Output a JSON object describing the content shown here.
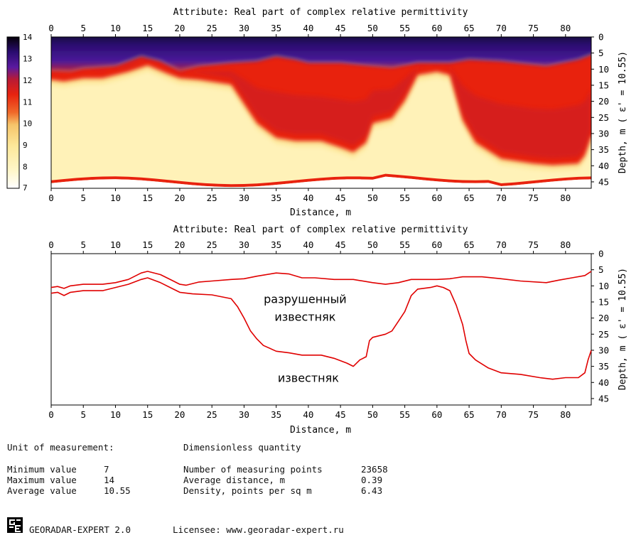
{
  "chart_data": [
    {
      "type": "heatmap",
      "title": "Attribute:  Real part of complex relative permittivity",
      "xlabel": "Distance, m",
      "ylabel": "Depth, m  ( ε' = 10.55)",
      "xlim": [
        0,
        84
      ],
      "ylim": [
        0,
        47
      ],
      "x_ticks": [
        "0",
        "5",
        "10",
        "15",
        "20",
        "25",
        "30",
        "35",
        "40",
        "45",
        "50",
        "55",
        "60",
        "65",
        "70",
        "75",
        "80"
      ],
      "y_ticks": [
        "0",
        "5",
        "10",
        "15",
        "20",
        "25",
        "30",
        "35",
        "40",
        "45"
      ],
      "colorbar": {
        "ticks": [
          "14",
          "13",
          "12",
          "11",
          "10",
          "9",
          "8",
          "7"
        ],
        "min": 7,
        "max": 14,
        "colors": [
          "#ffffff",
          "#fff2b8",
          "#fde89a",
          "#f6c46a",
          "#f06a2a",
          "#e8230f",
          "#b81a35",
          "#4a1598",
          "#2a0c70",
          "#050008"
        ]
      },
      "bands": {
        "upper_boundary_depth": [
          [
            0,
            10.5
          ],
          [
            3,
            10.8
          ],
          [
            5,
            9.8
          ],
          [
            10,
            9
          ],
          [
            14,
            6
          ],
          [
            17,
            7.5
          ],
          [
            20,
            10.5
          ],
          [
            23,
            9
          ],
          [
            28,
            8
          ],
          [
            32,
            7.5
          ],
          [
            35,
            6
          ],
          [
            38,
            7
          ],
          [
            40,
            8
          ],
          [
            45,
            8
          ],
          [
            50,
            9
          ],
          [
            53,
            9.5
          ],
          [
            57,
            8
          ],
          [
            62,
            8
          ],
          [
            65,
            7
          ],
          [
            70,
            7.5
          ],
          [
            77,
            9
          ],
          [
            82,
            7
          ],
          [
            84,
            5.5
          ]
        ],
        "lower_boundary_depth": [
          [
            0,
            12.5
          ],
          [
            2,
            13
          ],
          [
            5,
            12
          ],
          [
            8,
            12
          ],
          [
            12,
            10
          ],
          [
            15,
            8
          ],
          [
            18,
            10.5
          ],
          [
            20,
            12
          ],
          [
            23,
            12.5
          ],
          [
            28,
            14
          ],
          [
            30,
            20
          ],
          [
            32,
            26
          ],
          [
            35,
            30.5
          ],
          [
            38,
            31.5
          ],
          [
            42,
            31.5
          ],
          [
            45,
            33.5
          ],
          [
            47,
            35
          ],
          [
            49,
            32
          ],
          [
            50,
            26
          ],
          [
            53,
            24.5
          ],
          [
            55,
            19
          ],
          [
            57,
            11
          ],
          [
            60,
            10
          ],
          [
            62,
            11
          ],
          [
            64,
            25
          ],
          [
            66,
            32
          ],
          [
            70,
            37
          ],
          [
            75,
            38.5
          ],
          [
            78,
            39
          ],
          [
            82,
            38.5
          ],
          [
            83,
            36
          ],
          [
            84,
            30
          ]
        ],
        "bottom_edge_depth": 47
      },
      "zone_values": {
        "top": 13.5,
        "between_boundaries": 11.3,
        "below_lower_boundary": 9.3
      }
    },
    {
      "type": "line",
      "title": "Attribute:  Real part of complex relative permittivity",
      "xlabel": "Distance, m",
      "ylabel": "Depth, m  ( ε' = 10.55)",
      "xlim": [
        0,
        84
      ],
      "ylim": [
        0,
        47
      ],
      "x_ticks": [
        "0",
        "5",
        "10",
        "15",
        "20",
        "25",
        "30",
        "35",
        "40",
        "45",
        "50",
        "55",
        "60",
        "65",
        "70",
        "75",
        "80"
      ],
      "y_ticks": [
        "0",
        "5",
        "10",
        "15",
        "20",
        "25",
        "30",
        "35",
        "40",
        "45"
      ],
      "series": [
        {
          "color": "#e00000",
          "points": [
            [
              0,
              10.5
            ],
            [
              1,
              10.2
            ],
            [
              2,
              10.8
            ],
            [
              3,
              10
            ],
            [
              5,
              9.5
            ],
            [
              8,
              9.5
            ],
            [
              10,
              9
            ],
            [
              12,
              8
            ],
            [
              14,
              6
            ],
            [
              15,
              5.5
            ],
            [
              17,
              6.5
            ],
            [
              19,
              8.5
            ],
            [
              20,
              9.5
            ],
            [
              21,
              9.8
            ],
            [
              23,
              8.8
            ],
            [
              25,
              8.5
            ],
            [
              28,
              8
            ],
            [
              30,
              7.8
            ],
            [
              32,
              7
            ],
            [
              35,
              6
            ],
            [
              37,
              6.3
            ],
            [
              39,
              7.5
            ],
            [
              41,
              7.5
            ],
            [
              44,
              8
            ],
            [
              47,
              8
            ],
            [
              50,
              9
            ],
            [
              52,
              9.5
            ],
            [
              54,
              9
            ],
            [
              56,
              8
            ],
            [
              60,
              8
            ],
            [
              62,
              7.8
            ],
            [
              64,
              7.2
            ],
            [
              67,
              7.2
            ],
            [
              70,
              7.8
            ],
            [
              73,
              8.5
            ],
            [
              77,
              9
            ],
            [
              79,
              8.2
            ],
            [
              81,
              7.5
            ],
            [
              83,
              6.8
            ],
            [
              84,
              5.5
            ]
          ]
        },
        {
          "color": "#e00000",
          "points": [
            [
              0,
              12.3
            ],
            [
              1,
              12
            ],
            [
              2,
              13
            ],
            [
              3,
              12
            ],
            [
              5,
              11.5
            ],
            [
              8,
              11.5
            ],
            [
              10,
              10.5
            ],
            [
              12,
              9.5
            ],
            [
              14,
              8
            ],
            [
              15,
              7.5
            ],
            [
              17,
              9
            ],
            [
              19,
              11
            ],
            [
              20,
              12
            ],
            [
              22,
              12.5
            ],
            [
              25,
              12.8
            ],
            [
              28,
              14
            ],
            [
              29,
              16.5
            ],
            [
              30,
              20
            ],
            [
              31,
              24
            ],
            [
              32,
              26.5
            ],
            [
              33,
              28.5
            ],
            [
              35,
              30.3
            ],
            [
              37,
              30.8
            ],
            [
              39,
              31.5
            ],
            [
              42,
              31.5
            ],
            [
              44,
              32.5
            ],
            [
              46,
              34
            ],
            [
              47,
              35
            ],
            [
              48,
              33
            ],
            [
              49,
              32
            ],
            [
              49.5,
              27
            ],
            [
              50,
              26
            ],
            [
              52,
              25
            ],
            [
              53,
              24
            ],
            [
              54,
              21
            ],
            [
              55,
              18
            ],
            [
              56,
              13
            ],
            [
              57,
              11
            ],
            [
              59,
              10.5
            ],
            [
              60,
              10
            ],
            [
              61,
              10.5
            ],
            [
              62,
              11.5
            ],
            [
              63,
              16
            ],
            [
              64,
              22
            ],
            [
              64.5,
              27
            ],
            [
              65,
              31
            ],
            [
              66,
              33
            ],
            [
              68,
              35.5
            ],
            [
              70,
              37
            ],
            [
              73,
              37.5
            ],
            [
              76,
              38.5
            ],
            [
              78,
              39
            ],
            [
              80,
              38.5
            ],
            [
              82,
              38.5
            ],
            [
              83,
              37
            ],
            [
              83.5,
              33
            ],
            [
              84,
              30
            ]
          ]
        }
      ],
      "annotations": [
        {
          "text": "разрушенный",
          "x": 39.5,
          "y": 14
        },
        {
          "text": "известняк",
          "x": 39.5,
          "y": 19.5
        },
        {
          "text": "известняк",
          "x": 40,
          "y": 38.5
        }
      ]
    }
  ],
  "info": {
    "unit_label": "Unit of measurement:",
    "unit_value": "Dimensionless quantity",
    "min_label": "Minimum value",
    "min_value": "7",
    "max_label": "Maximum value",
    "max_value": "14",
    "avg_label": "Average value",
    "avg_value": "10.55",
    "points_label": "Number of measuring points",
    "points_value": "23658",
    "dist_label": "Average distance, m",
    "dist_value": "0.39",
    "density_label": "Density, points per sq m",
    "density_value": "6.43"
  },
  "footer": {
    "logo_icon": "georadar-logo-icon",
    "product": "GEORADAR-EXPERT 2.0",
    "licensee": "Licensee: www.georadar-expert.ru"
  }
}
